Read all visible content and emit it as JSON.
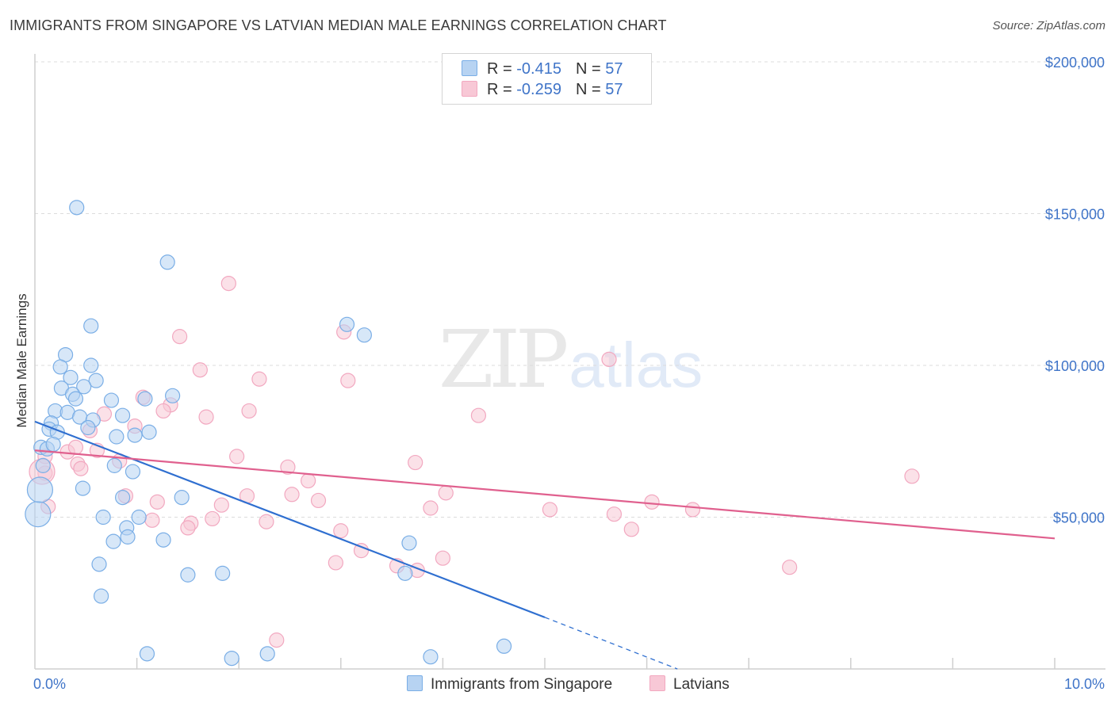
{
  "chart_data": {
    "type": "scatter",
    "title": "IMMIGRANTS FROM SINGAPORE VS LATVIAN MEDIAN MALE EARNINGS CORRELATION CHART",
    "source": "Source: ZipAtlas.com",
    "ylabel": "Median Male Earnings",
    "xlabel": "",
    "xlim": [
      0,
      10
    ],
    "ylim": [
      0,
      200000
    ],
    "x_tick_labels": [
      "0.0%",
      "10.0%"
    ],
    "y_ticks": [
      {
        "value": 50000,
        "label": "$50,000"
      },
      {
        "value": 100000,
        "label": "$100,000"
      },
      {
        "value": 150000,
        "label": "$150,000"
      },
      {
        "value": 200000,
        "label": "$200,000"
      }
    ],
    "watermark": {
      "part1": "ZIP",
      "part2": "atlas"
    },
    "legend": [
      {
        "r_label": "R =",
        "r_value": "-0.415",
        "n_label": "N =",
        "n_value": "57"
      },
      {
        "r_label": "R =",
        "r_value": "-0.259",
        "n_label": "N =",
        "n_value": "57"
      }
    ],
    "series": [
      {
        "name": "Immigrants from Singapore",
        "color": "#7aaee6",
        "fill": "#b7d3f2",
        "trend_color": "#2f6fd0",
        "trend": {
          "x0": 0.0,
          "y0": 81500,
          "x1": 5.0,
          "y1": 17000,
          "dash_x1": 6.3,
          "dash_y1": 0
        },
        "points": [
          [
            0.41,
            152000
          ],
          [
            1.3,
            134000
          ],
          [
            0.55,
            113000
          ],
          [
            3.06,
            113500
          ],
          [
            3.23,
            110000
          ],
          [
            0.3,
            103500
          ],
          [
            0.25,
            99500
          ],
          [
            0.55,
            100000
          ],
          [
            0.35,
            96000
          ],
          [
            0.6,
            95000
          ],
          [
            0.26,
            92500
          ],
          [
            0.48,
            93000
          ],
          [
            0.37,
            90500
          ],
          [
            0.4,
            89000
          ],
          [
            1.08,
            89000
          ],
          [
            1.35,
            90000
          ],
          [
            0.75,
            88500
          ],
          [
            0.2,
            85000
          ],
          [
            0.32,
            84500
          ],
          [
            0.44,
            83000
          ],
          [
            0.57,
            82000
          ],
          [
            0.86,
            83500
          ],
          [
            0.16,
            81000
          ],
          [
            0.14,
            79000
          ],
          [
            0.22,
            78000
          ],
          [
            0.52,
            79500
          ],
          [
            0.8,
            76500
          ],
          [
            0.98,
            77000
          ],
          [
            1.12,
            78000
          ],
          [
            0.06,
            73000
          ],
          [
            0.12,
            72500
          ],
          [
            0.18,
            74000
          ],
          [
            0.08,
            67000
          ],
          [
            0.78,
            67000
          ],
          [
            0.96,
            65000
          ],
          [
            0.47,
            59500
          ],
          [
            0.86,
            56500
          ],
          [
            1.44,
            56500
          ],
          [
            0.03,
            51000
          ],
          [
            0.67,
            50000
          ],
          [
            1.02,
            50000
          ],
          [
            0.9,
            46500
          ],
          [
            0.91,
            43500
          ],
          [
            0.77,
            42000
          ],
          [
            1.26,
            42500
          ],
          [
            3.67,
            41500
          ],
          [
            0.63,
            34500
          ],
          [
            1.5,
            31000
          ],
          [
            1.84,
            31500
          ],
          [
            3.63,
            31500
          ],
          [
            0.65,
            24000
          ],
          [
            1.1,
            5000
          ],
          [
            1.93,
            3500
          ],
          [
            2.28,
            5000
          ],
          [
            3.88,
            4000
          ],
          [
            4.6,
            7500
          ],
          [
            0.05,
            59000
          ]
        ]
      },
      {
        "name": "Latvians",
        "color": "#f2a8c0",
        "fill": "#f8c8d6",
        "trend_color": "#e0608e",
        "trend": {
          "x0": 0.0,
          "y0": 72000,
          "x1": 10.0,
          "y1": 43000
        },
        "points": [
          [
            1.9,
            127000
          ],
          [
            1.42,
            109500
          ],
          [
            3.03,
            111000
          ],
          [
            5.63,
            102000
          ],
          [
            1.62,
            98500
          ],
          [
            2.2,
            95500
          ],
          [
            3.07,
            95000
          ],
          [
            1.06,
            89500
          ],
          [
            1.33,
            87000
          ],
          [
            1.26,
            85000
          ],
          [
            2.1,
            85000
          ],
          [
            4.35,
            83500
          ],
          [
            1.68,
            83000
          ],
          [
            0.68,
            84000
          ],
          [
            0.98,
            80000
          ],
          [
            0.54,
            78500
          ],
          [
            0.1,
            70000
          ],
          [
            0.32,
            71500
          ],
          [
            0.4,
            73000
          ],
          [
            0.61,
            72000
          ],
          [
            1.98,
            70000
          ],
          [
            0.83,
            68500
          ],
          [
            3.73,
            68000
          ],
          [
            0.42,
            67500
          ],
          [
            0.45,
            66000
          ],
          [
            2.48,
            66500
          ],
          [
            0.1,
            64500
          ],
          [
            2.68,
            62000
          ],
          [
            8.6,
            63500
          ],
          [
            0.89,
            57000
          ],
          [
            2.52,
            57500
          ],
          [
            4.03,
            58000
          ],
          [
            2.08,
            57000
          ],
          [
            2.78,
            55500
          ],
          [
            1.2,
            55000
          ],
          [
            1.83,
            54000
          ],
          [
            6.05,
            55000
          ],
          [
            3.88,
            53000
          ],
          [
            5.05,
            52500
          ],
          [
            6.45,
            52500
          ],
          [
            5.68,
            51000
          ],
          [
            0.13,
            53500
          ],
          [
            1.74,
            49500
          ],
          [
            1.53,
            48000
          ],
          [
            1.15,
            49000
          ],
          [
            2.27,
            48500
          ],
          [
            1.5,
            46500
          ],
          [
            3.0,
            45500
          ],
          [
            5.85,
            46000
          ],
          [
            3.2,
            39000
          ],
          [
            4.0,
            36500
          ],
          [
            3.55,
            34000
          ],
          [
            2.95,
            35000
          ],
          [
            3.75,
            32500
          ],
          [
            7.4,
            33500
          ],
          [
            2.37,
            9500
          ],
          [
            0.07,
            65000
          ]
        ]
      }
    ]
  }
}
